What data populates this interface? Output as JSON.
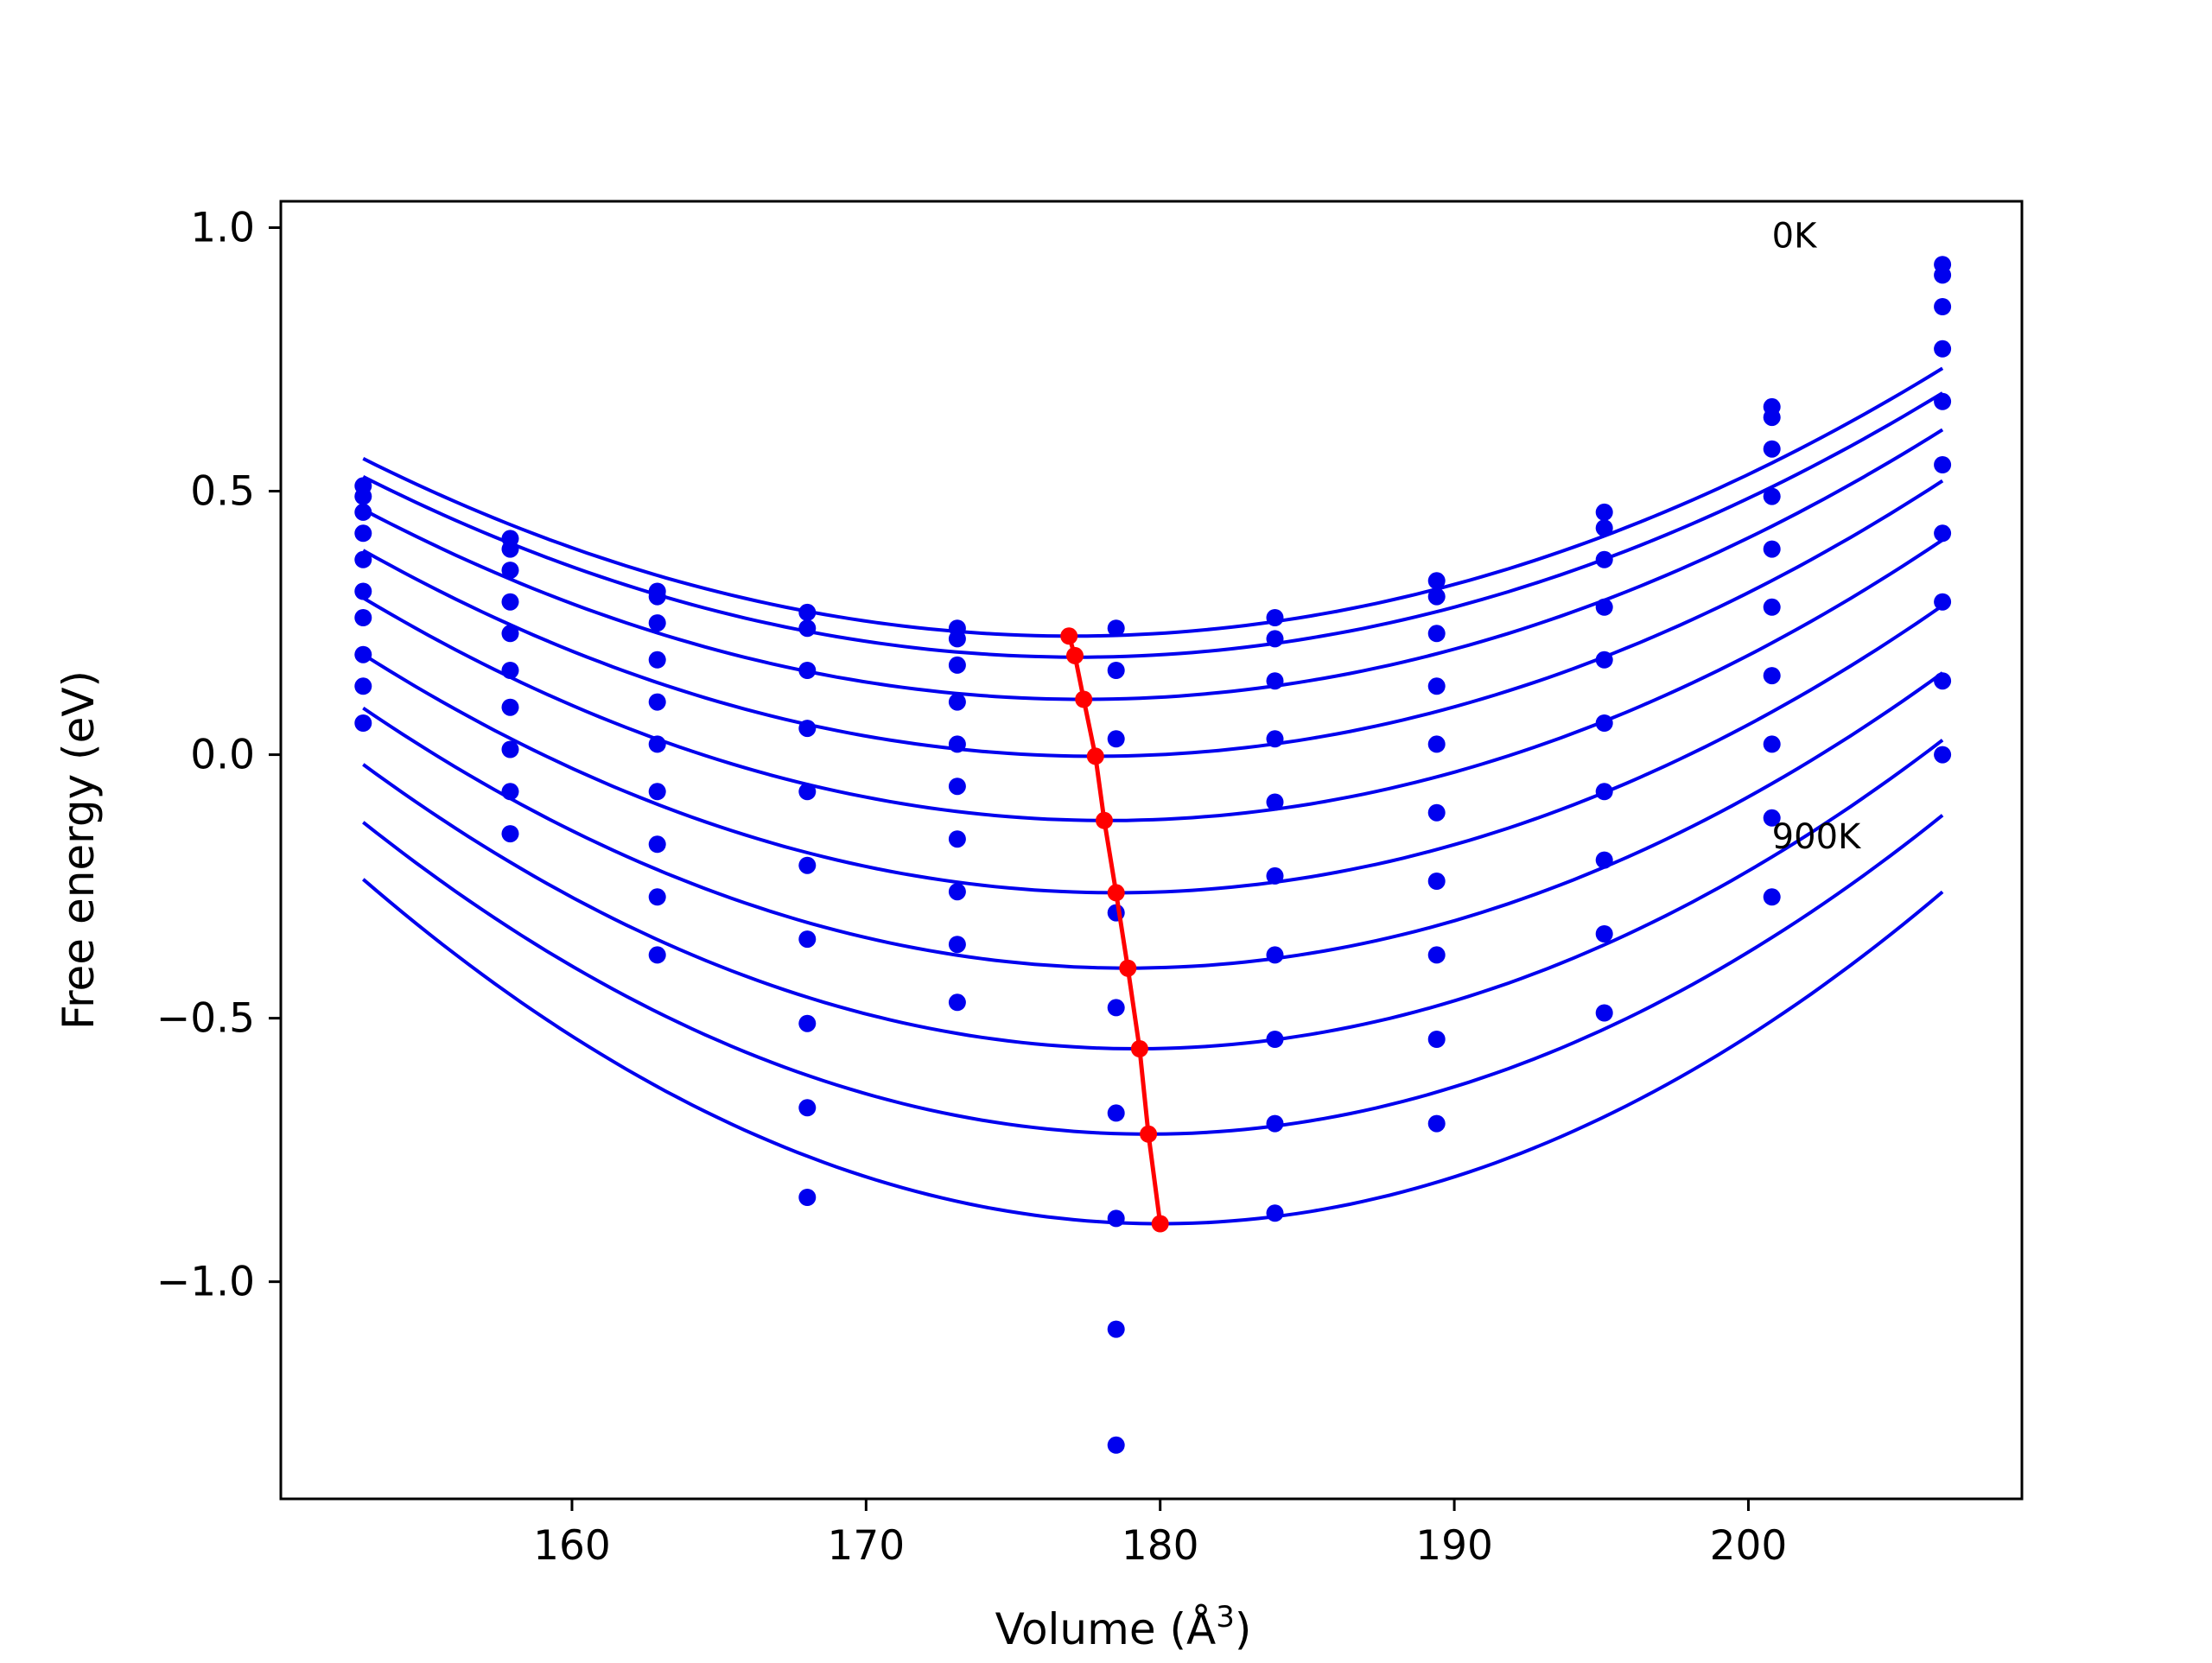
{
  "chart_data": {
    "type": "scatter",
    "title": "",
    "xlabel": "Volume (Å",
    "xlabel_superscript": "3",
    "xlabel_suffix": ")",
    "ylabel": "Free energy (eV)",
    "xlim": [
      150.1,
      209.3
    ],
    "ylim": [
      -1.412,
      1.05
    ],
    "grid": false,
    "x_ticks": [
      160,
      170,
      180,
      190,
      200
    ],
    "x_tick_labels": [
      "160",
      "170",
      "180",
      "190",
      "200"
    ],
    "y_ticks": [
      1.0,
      0.5,
      0.0,
      -0.5,
      -1.0
    ],
    "y_tick_labels": [
      "1.0",
      "0.5",
      "0.0",
      "−0.5",
      "−1.0"
    ],
    "annotations": [
      {
        "text": "0K",
        "x": 200.8,
        "y": 0.985
      },
      {
        "text": "900K",
        "x": 200.8,
        "y": -0.155
      }
    ],
    "colors": {
      "fit": "#0000ee",
      "points": "#0000ee",
      "minima": "#ff0000"
    },
    "volumes": [
      152.9,
      157.9,
      162.9,
      168.0,
      173.1,
      178.5,
      183.9,
      189.4,
      195.1,
      200.8,
      206.6
    ],
    "series": [
      {
        "fit": {
          "xmin": 152.9,
          "xmax": 206.6,
          "v0": 177.0,
          "e0": 0.225,
          "a": 0.00058
        },
        "points": [
          0.51,
          0.41,
          0.31,
          0.27,
          0.24,
          0.24,
          0.26,
          0.33,
          0.46,
          0.66,
          0.93
        ]
      },
      {
        "fit": {
          "xmin": 152.9,
          "xmax": 206.6,
          "v0": 177.2,
          "e0": 0.185,
          "a": 0.00058
        },
        "points": [
          0.49,
          0.39,
          0.3,
          0.24,
          0.22,
          0.16,
          0.22,
          0.3,
          0.43,
          0.64,
          0.91
        ]
      },
      {
        "fit": {
          "xmin": 152.9,
          "xmax": 206.6,
          "v0": 177.4,
          "e0": 0.105,
          "a": 0.0006
        },
        "points": [
          0.46,
          0.35,
          0.25,
          0.16,
          0.17,
          0.03,
          0.14,
          0.23,
          0.37,
          0.58,
          0.85
        ]
      },
      {
        "fit": {
          "xmin": 152.9,
          "xmax": 206.6,
          "v0": 177.8,
          "e0": -0.003,
          "a": 0.00063
        },
        "points": [
          0.42,
          0.29,
          0.18,
          0.05,
          0.1,
          -0.3,
          0.03,
          0.13,
          0.28,
          0.49,
          0.77
        ]
      },
      {
        "fit": {
          "xmin": 152.9,
          "xmax": 206.6,
          "v0": 178.2,
          "e0": -0.125,
          "a": 0.00066
        },
        "points": [
          0.37,
          0.23,
          0.1,
          -0.07,
          0.02,
          -0.48,
          -0.09,
          0.02,
          0.18,
          0.39,
          0.67
        ]
      },
      {
        "fit": {
          "xmin": 152.9,
          "xmax": 206.6,
          "v0": 178.5,
          "e0": -0.262,
          "a": 0.00069
        },
        "points": [
          0.31,
          0.16,
          0.02,
          -0.21,
          -0.06,
          -0.68,
          -0.23,
          -0.11,
          0.06,
          0.28,
          0.55
        ]
      },
      {
        "fit": {
          "xmin": 152.9,
          "xmax": 206.6,
          "v0": 178.9,
          "e0": -0.405,
          "a": 0.00073
        },
        "points": [
          0.26,
          0.09,
          -0.07,
          -0.35,
          -0.16,
          -0.88,
          -0.38,
          -0.24,
          -0.07,
          0.15,
          0.42
        ]
      },
      {
        "fit": {
          "xmin": 152.9,
          "xmax": 206.6,
          "v0": 179.2,
          "e0": -0.558,
          "a": 0.00078
        },
        "points": [
          0.19,
          0.01,
          -0.17,
          -0.51,
          -0.26,
          -1.09,
          -0.54,
          -0.38,
          -0.2,
          0.02,
          0.29
        ]
      },
      {
        "fit": {
          "xmin": 152.9,
          "xmax": 206.6,
          "v0": 179.6,
          "e0": -0.72,
          "a": 0.00083
        },
        "points": [
          0.13,
          -0.07,
          -0.27,
          -0.67,
          -0.36,
          -1.31,
          -0.7,
          -0.54,
          -0.34,
          -0.12,
          0.14
        ]
      },
      {
        "fit": {
          "xmin": 152.9,
          "xmax": 206.6,
          "v0": 180.0,
          "e0": -0.89,
          "a": 0.00089
        },
        "points": [
          0.06,
          -0.15,
          -0.38,
          -0.84,
          -0.47,
          null,
          -0.87,
          -0.7,
          -0.49,
          -0.27,
          0.0
        ]
      }
    ],
    "minima_line": {
      "x": [
        176.9,
        177.1,
        177.4,
        177.8,
        178.1,
        178.5,
        178.9,
        179.3,
        179.6,
        180.0
      ],
      "y": [
        0.225,
        0.188,
        0.105,
        -0.003,
        -0.125,
        -0.262,
        -0.405,
        -0.558,
        -0.72,
        -0.89
      ]
    }
  }
}
